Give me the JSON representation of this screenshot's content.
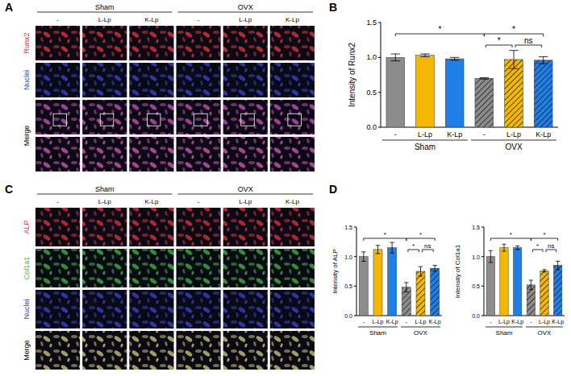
{
  "image_grids": [
    {
      "panel": "A",
      "groups": [
        {
          "label": "Sham",
          "start": 0,
          "end": 2
        },
        {
          "label": "OVX",
          "start": 3,
          "end": 5
        }
      ],
      "columns": [
        "-",
        "L-Lp",
        "K-Lp",
        "-",
        "L-Lp",
        "K-Lp"
      ],
      "rows": [
        {
          "label": "Runx2",
          "color": "#e0303a",
          "label_color": "#e0303a"
        },
        {
          "label": "Nuclei",
          "color": "#3440c8",
          "label_color": "#3440c8"
        },
        {
          "label": "Merge",
          "color": "#c848b8",
          "label_color": "#000000"
        },
        {
          "label": null,
          "color": "#d050b0",
          "label_color": "#000000"
        }
      ]
    },
    {
      "panel": "C",
      "groups": [
        {
          "label": "Sham",
          "start": 0,
          "end": 2
        },
        {
          "label": "OVX",
          "start": 3,
          "end": 5
        }
      ],
      "columns": [
        "-",
        "L-Lp",
        "K-Lp",
        "-",
        "L-Lp",
        "K-Lp"
      ],
      "rows": [
        {
          "label": "ALP",
          "color": "#d83038",
          "label_color": "#e0303a"
        },
        {
          "label": "Col1a1",
          "color": "#38b040",
          "label_color": "#38b040"
        },
        {
          "label": "Nuclei",
          "color": "#3440c8",
          "label_color": "#3440c8"
        },
        {
          "label": "Merge",
          "color": "#c8c070",
          "label_color": "#000000"
        }
      ]
    }
  ],
  "chart_data": [
    {
      "type": "bar",
      "panel": "B",
      "y_label": "Intensity of Runx2",
      "categories": [
        "-",
        "L-Lp",
        "K-Lp",
        "-",
        "L-Lp",
        "K-Lp"
      ],
      "values": [
        1.0,
        1.03,
        0.98,
        0.7,
        0.97,
        0.96
      ],
      "errors": [
        0.05,
        0.02,
        0.02,
        0.01,
        0.13,
        0.05
      ],
      "colors": [
        "#8c8c8c",
        "#f5b800",
        "#1f7fe8",
        "#8c8c8c",
        "#f5b800",
        "#1f7fe8"
      ],
      "groups": [
        {
          "label": "Sham",
          "start": 0,
          "end": 2,
          "line_style": "solid"
        },
        {
          "label": "OVX",
          "start": 3,
          "end": 5,
          "line_style": "hatched"
        }
      ],
      "annotations": [
        {
          "start": 0,
          "end": 3,
          "label": "*"
        },
        {
          "start": 3,
          "end": 5,
          "label": "*"
        },
        {
          "start": 3,
          "end": 4,
          "label": "*"
        },
        {
          "start": 4,
          "end": 5,
          "label": "ns"
        }
      ],
      "ylim": [
        0,
        1.5
      ],
      "yticks": [
        {
          "value": 0,
          "label": "0.0"
        },
        {
          "value": 0.5,
          "label": "0.5"
        },
        {
          "value": 1.0,
          "label": "1.0"
        },
        {
          "value": 1.5,
          "label": "1.5"
        }
      ]
    },
    {
      "type": "bar",
      "panel": "D",
      "y_label": "Intensity of ALP",
      "categories": [
        "-",
        "L-Lp",
        "K-Lp",
        "-",
        "L-Lp",
        "K-Lp"
      ],
      "values": [
        1.0,
        1.12,
        1.15,
        0.48,
        0.75,
        0.8
      ],
      "errors": [
        0.08,
        0.07,
        0.09,
        0.08,
        0.08,
        0.05
      ],
      "colors": [
        "#8c8c8c",
        "#f5b800",
        "#1f7fe8",
        "#8c8c8c",
        "#f5b800",
        "#1f7fe8"
      ],
      "groups": [
        {
          "label": "Sham",
          "start": 0,
          "end": 2,
          "line_style": "solid"
        },
        {
          "label": "OVX",
          "start": 3,
          "end": 5,
          "line_style": "hatched"
        }
      ],
      "annotations": [
        {
          "start": 0,
          "end": 3,
          "label": "*"
        },
        {
          "start": 3,
          "end": 5,
          "label": "*"
        },
        {
          "start": 3,
          "end": 4,
          "label": "*"
        },
        {
          "start": 4,
          "end": 5,
          "label": "ns"
        }
      ],
      "ylim": [
        0,
        1.5
      ],
      "yticks": [
        {
          "value": 0,
          "label": "0.0"
        },
        {
          "value": 0.5,
          "label": "0.5"
        },
        {
          "value": 1.0,
          "label": "1.0"
        },
        {
          "value": 1.5,
          "label": "1.5"
        }
      ]
    },
    {
      "type": "bar",
      "y_label": "Intensity of Col1a1",
      "categories": [
        "-",
        "L-Lp",
        "K-Lp",
        "-",
        "L-Lp",
        "K-Lp"
      ],
      "values": [
        1.0,
        1.15,
        1.15,
        0.52,
        0.76,
        0.85
      ],
      "errors": [
        0.1,
        0.06,
        0.03,
        0.08,
        0.02,
        0.07
      ],
      "colors": [
        "#8c8c8c",
        "#f5b800",
        "#1f7fe8",
        "#8c8c8c",
        "#f5b800",
        "#1f7fe8"
      ],
      "groups": [
        {
          "label": "Sham",
          "start": 0,
          "end": 2,
          "line_style": "solid"
        },
        {
          "label": "OVX",
          "start": 3,
          "end": 5,
          "line_style": "hatched"
        }
      ],
      "annotations": [
        {
          "start": 0,
          "end": 3,
          "label": "*"
        },
        {
          "start": 3,
          "end": 5,
          "label": "*"
        },
        {
          "start": 3,
          "end": 4,
          "label": "*"
        },
        {
          "start": 4,
          "end": 5,
          "label": "ns"
        }
      ],
      "ylim": [
        0,
        1.5
      ],
      "yticks": [
        {
          "value": 0,
          "label": "0.0"
        },
        {
          "value": 0.5,
          "label": "0.5"
        },
        {
          "value": 1.0,
          "label": "1.0"
        },
        {
          "value": 1.5,
          "label": "1.5"
        }
      ]
    }
  ]
}
